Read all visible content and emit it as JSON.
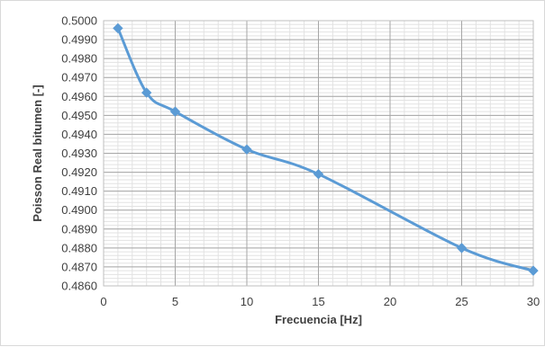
{
  "chart_data": {
    "type": "line",
    "title": "",
    "xlabel": "Frecuencia [Hz]",
    "ylabel": "Poisson Real bitumen [-]",
    "xlim": [
      0,
      30
    ],
    "ylim": [
      0.486,
      0.5
    ],
    "x_ticks": [
      0,
      5,
      10,
      15,
      20,
      25,
      30
    ],
    "y_ticks": [
      "0.4860",
      "0.4870",
      "0.4880",
      "0.4890",
      "0.4900",
      "0.4910",
      "0.4920",
      "0.4930",
      "0.4940",
      "0.4950",
      "0.4960",
      "0.4970",
      "0.4980",
      "0.4990",
      "0.5000"
    ],
    "grid": {
      "major": true,
      "minor": true
    },
    "smoothed": true,
    "marker": "diamond",
    "legend": "none",
    "series": [
      {
        "color": "#5b9bd5",
        "points": [
          {
            "x": 1,
            "y": 0.4996
          },
          {
            "x": 3,
            "y": 0.4962
          },
          {
            "x": 5,
            "y": 0.4952
          },
          {
            "x": 10,
            "y": 0.4932
          },
          {
            "x": 15,
            "y": 0.4919
          },
          {
            "x": 25,
            "y": 0.488
          },
          {
            "x": 30,
            "y": 0.4868
          }
        ]
      }
    ]
  }
}
